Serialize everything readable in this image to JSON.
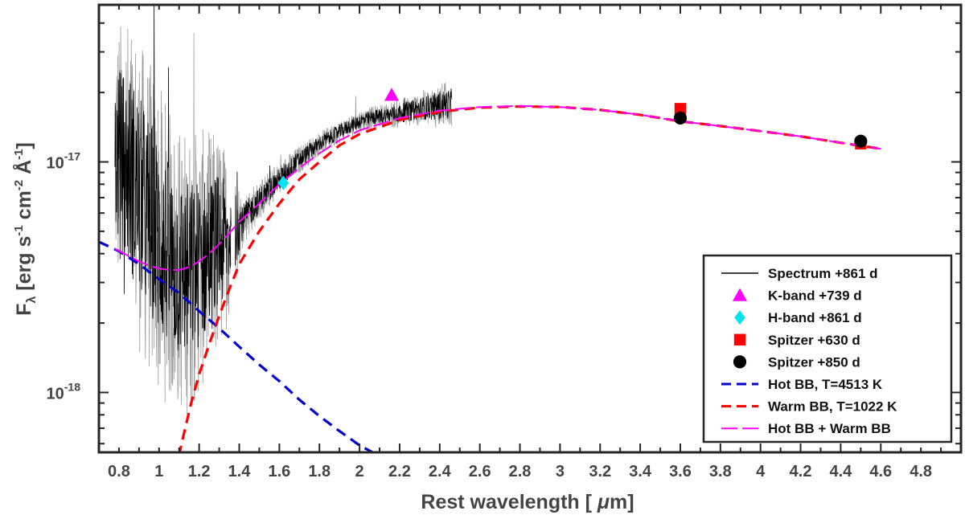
{
  "chart_data": {
    "type": "line",
    "title": "",
    "xlabel": "Rest wavelength [ μm]",
    "ylabel": "F_λ [erg s^-1 cm^-2 Å^-1]",
    "xlim": [
      0.7,
      5.0
    ],
    "ylim": [
      5.5e-19,
      4.8e-17
    ],
    "yscale": "log",
    "grid": false,
    "legend_position": "bottom-right",
    "x_ticks": [
      0.8,
      1.0,
      1.2,
      1.4,
      1.6,
      1.8,
      2.0,
      2.2,
      2.4,
      2.6,
      2.8,
      3.0,
      3.2,
      3.4,
      3.6,
      3.8,
      4.0,
      4.2,
      4.4,
      4.6,
      4.8
    ],
    "x_tick_labels": [
      "0.8",
      "1",
      "1.2",
      "1.4",
      "1.6",
      "1.8",
      "2",
      "2.2",
      "2.4",
      "2.6",
      "2.8",
      "3",
      "3.2",
      "3.4",
      "3.6",
      "3.8",
      "4",
      "4.2",
      "4.4",
      "4.6",
      "4.8"
    ],
    "y_ticks": [
      1e-18,
      1e-17
    ],
    "y_tick_labels": [
      {
        "mantissa": "10",
        "exponent": "-18"
      },
      {
        "mantissa": "10",
        "exponent": "-17"
      }
    ],
    "ylabel_parts": {
      "symbol": "F",
      "sub": "λ",
      "text1": " [erg s",
      "exp1": "-1",
      "text2": " cm",
      "exp2": "-2",
      "text3": " Å",
      "exp3": "-1",
      "text4": "]"
    },
    "xlabel_parts": {
      "text1": "Rest wavelength [ ",
      "mu": "μ",
      "text2": "m]"
    },
    "series": [
      {
        "name": "Spectrum +861 d",
        "kind": "spectrum",
        "color": "#000000",
        "bands": [
          [
            0.78,
            1.36
          ],
          [
            1.38,
            2.46
          ]
        ],
        "envelope": {
          "x": [
            0.78,
            0.85,
            0.92,
            1.0,
            1.08,
            1.15,
            1.22,
            1.3,
            1.36,
            1.42,
            1.5,
            1.6,
            1.7,
            1.8,
            1.9,
            2.0,
            2.1,
            2.2,
            2.3,
            2.4,
            2.46
          ],
          "y": [
            1.1e-17,
            9e-18,
            6.5e-18,
            4.5e-18,
            3.5e-18,
            3.3e-18,
            3.8e-18,
            4.3e-18,
            4.8e-18,
            5.6e-18,
            6.8e-18,
            8.4e-18,
            1.02e-17,
            1.2e-17,
            1.35e-17,
            1.5e-17,
            1.58e-17,
            1.62e-17,
            1.7e-17,
            1.75e-17,
            1.8e-17
          ]
        },
        "noise_dex": [
          0.45,
          0.55,
          0.55,
          0.55,
          0.5,
          0.5,
          0.45,
          0.4,
          0.25,
          0.09,
          0.07,
          0.06,
          0.05,
          0.04,
          0.04,
          0.04,
          0.04,
          0.05,
          0.06,
          0.08,
          0.08
        ]
      },
      {
        "name": "K-band +739 d",
        "kind": "marker",
        "marker": "triangle",
        "color": "#ff00ff",
        "x": [
          2.16
        ],
        "y": [
          1.95e-17
        ]
      },
      {
        "name": "H-band +861 d",
        "kind": "marker",
        "marker": "diamond",
        "color": "#00e5ee",
        "x": [
          1.62
        ],
        "y": [
          8.1e-18
        ]
      },
      {
        "name": "Spitzer +630 d",
        "kind": "marker",
        "marker": "square",
        "color": "#ff0000",
        "x": [
          3.6,
          4.5
        ],
        "y": [
          1.7e-17,
          1.2e-17
        ]
      },
      {
        "name": "Spitzer +850 d",
        "kind": "marker",
        "marker": "circle",
        "color": "#000000",
        "x": [
          3.6,
          4.5
        ],
        "y": [
          1.55e-17,
          1.23e-17
        ]
      },
      {
        "name": "Hot BB, T=4513 K",
        "kind": "line",
        "dash": "dashed",
        "color": "#0000cc",
        "x": [
          0.7,
          0.8,
          0.9,
          1.0,
          1.1,
          1.2,
          1.3,
          1.4,
          1.5,
          1.6,
          1.7,
          1.8,
          1.9,
          2.0,
          2.1,
          2.15
        ],
        "y": [
          4.5e-18,
          4.1e-18,
          3.6e-18,
          3.1e-18,
          2.7e-18,
          2.25e-18,
          1.9e-18,
          1.58e-18,
          1.32e-18,
          1.12e-18,
          9.3e-19,
          7.9e-19,
          6.8e-19,
          5.9e-19,
          5.3e-19,
          5e-19
        ]
      },
      {
        "name": "Warm BB, T=1022 K",
        "kind": "line",
        "dash": "dashed",
        "color": "#ff0000",
        "x": [
          1.08,
          1.12,
          1.16,
          1.2,
          1.25,
          1.3,
          1.35,
          1.4,
          1.5,
          1.6,
          1.7,
          1.8,
          1.9,
          2.0,
          2.2,
          2.4,
          2.6,
          2.8,
          3.0,
          3.2,
          3.4,
          3.6,
          3.8,
          4.0,
          4.2,
          4.4,
          4.6
        ],
        "y": [
          4.5e-19,
          6.4e-19,
          9e-19,
          1.2e-18,
          1.62e-18,
          2.15e-18,
          2.8e-18,
          3.6e-18,
          5e-18,
          6.6e-18,
          8.4e-18,
          1e-17,
          1.18e-17,
          1.32e-17,
          1.52e-17,
          1.65e-17,
          1.72e-17,
          1.74e-17,
          1.73e-17,
          1.68e-17,
          1.6e-17,
          1.5e-17,
          1.43e-17,
          1.36e-17,
          1.29e-17,
          1.21e-17,
          1.14e-17
        ]
      },
      {
        "name": "Hot BB + Warm BB",
        "kind": "line",
        "dash": "longdash",
        "color": "#ff00ff",
        "x": [
          0.78,
          0.85,
          0.9,
          0.95,
          1.0,
          1.05,
          1.1,
          1.15,
          1.2,
          1.25,
          1.3,
          1.35,
          1.4,
          1.5,
          1.6,
          1.7,
          1.8,
          1.9,
          2.0,
          2.2,
          2.4,
          2.6,
          2.8,
          3.0,
          3.2,
          3.4,
          3.6,
          3.8,
          4.0,
          4.2,
          4.4,
          4.6
        ],
        "y": [
          4.2e-18,
          3.9e-18,
          3.7e-18,
          3.55e-18,
          3.45e-18,
          3.4e-18,
          3.4e-18,
          3.5e-18,
          3.7e-18,
          4e-18,
          4.4e-18,
          4.9e-18,
          5.5e-18,
          6.6e-18,
          8e-18,
          9.4e-18,
          1.09e-17,
          1.24e-17,
          1.37e-17,
          1.55e-17,
          1.67e-17,
          1.73e-17,
          1.75e-17,
          1.73e-17,
          1.68e-17,
          1.6e-17,
          1.5e-17,
          1.43e-17,
          1.36e-17,
          1.29e-17,
          1.21e-17,
          1.14e-17
        ]
      }
    ],
    "legend": [
      {
        "label": "Spectrum +861 d",
        "symbol": "line",
        "color": "#000000"
      },
      {
        "label": "K-band +739 d",
        "symbol": "triangle",
        "color": "#ff00ff"
      },
      {
        "label": "H-band +861 d",
        "symbol": "diamond",
        "color": "#00e5ee"
      },
      {
        "label": "Spitzer +630 d",
        "symbol": "square",
        "color": "#ff0000"
      },
      {
        "label": "Spitzer +850 d",
        "symbol": "circle",
        "color": "#000000"
      },
      {
        "label": "Hot BB, T=4513 K",
        "symbol": "dashed",
        "color": "#0000cc"
      },
      {
        "label": "Warm BB, T=1022 K",
        "symbol": "dashed",
        "color": "#ff0000"
      },
      {
        "label": "Hot BB + Warm BB",
        "symbol": "longdash",
        "color": "#ff00ff"
      }
    ]
  }
}
